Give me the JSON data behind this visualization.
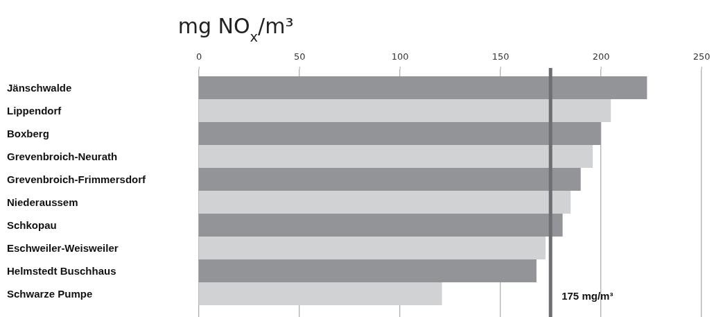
{
  "chart_data": {
    "type": "bar",
    "orientation": "horizontal",
    "title": "mg NO$_{x}$/m³",
    "categories": [
      "Jänschwalde",
      "Lippendorf",
      "Boxberg",
      "Grevenbroich-Neurath",
      "Grevenbroich-Frimmersdorf",
      "Niederaussem",
      "Schkopau",
      "Eschweiler-Weisweiler",
      "Helmstedt Buschhaus",
      "Schwarze Pumpe"
    ],
    "values": [
      223,
      205,
      200,
      196,
      190,
      185,
      181,
      172.5,
      168,
      121
    ],
    "colors": [
      "#939498",
      "#d1d2d4",
      "#939498",
      "#d1d2d4",
      "#939498",
      "#d1d2d4",
      "#939498",
      "#d1d2d4",
      "#939498",
      "#d1d2d4"
    ],
    "xlim": [
      0,
      250
    ],
    "xticks": [
      0,
      50,
      100,
      150,
      200,
      250
    ],
    "grid": "x",
    "ref_lines": [
      {
        "axis": "x",
        "value": 175,
        "label": "175 mg/m³",
        "color": "#6d6e71"
      }
    ]
  }
}
